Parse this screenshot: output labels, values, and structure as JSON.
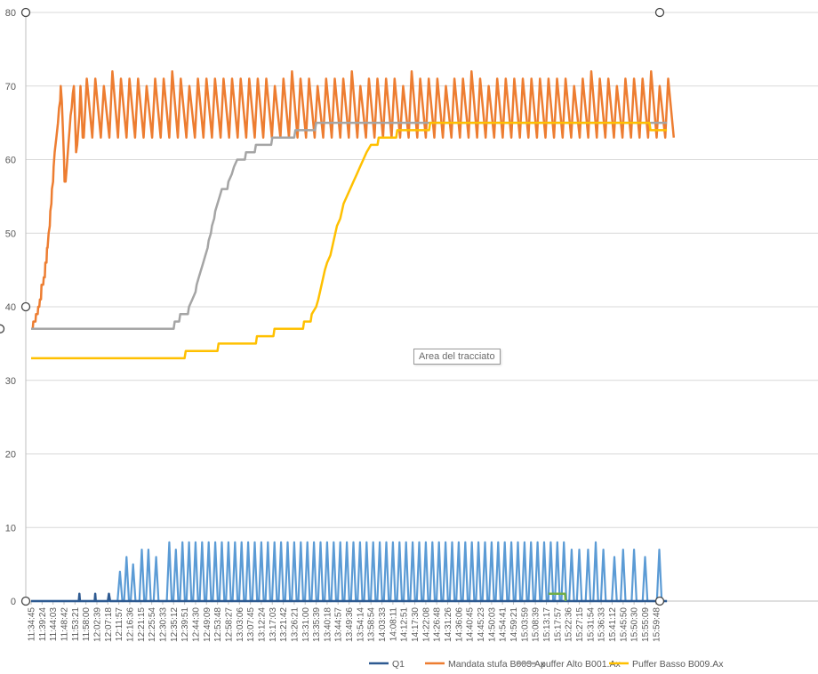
{
  "chart_data": {
    "type": "line",
    "ylim": [
      0,
      80
    ],
    "yticks": [
      0,
      10,
      20,
      30,
      40,
      50,
      60,
      70,
      80
    ],
    "grid": true,
    "legend_position": "bottom-right",
    "x_tick_labels": [
      "11:34:45",
      "11:39:24",
      "11:44:03",
      "11:48:42",
      "11:53:21",
      "11:58:00",
      "12:02:39",
      "12:07:18",
      "12:11:57",
      "12:16:36",
      "12:21:15",
      "12:25:54",
      "12:30:33",
      "12:35:12",
      "12:39:51",
      "12:44:30",
      "12:49:09",
      "12:53:48",
      "12:58:27",
      "13:03:06",
      "13:07:45",
      "13:12:24",
      "13:17:03",
      "13:21:42",
      "13:26:21",
      "13:31:00",
      "13:35:39",
      "13:40:18",
      "13:44:57",
      "13:49:36",
      "13:54:14",
      "13:58:54",
      "14:03:33",
      "14:08:11",
      "14:12:51",
      "14:17:30",
      "14:22:08",
      "14:26:48",
      "14:31:26",
      "14:36:06",
      "14:40:45",
      "14:45:23",
      "14:50:03",
      "14:54:41",
      "14:59:21",
      "15:03:59",
      "15:08:39",
      "15:13:17",
      "15:17:57",
      "15:22:36",
      "15:27:15",
      "15:31:54",
      "15:36:33",
      "15:41:12",
      "15:45:50",
      "15:50:30",
      "15:55:09",
      "15:59:48"
    ],
    "series": [
      {
        "name": "Q1",
        "color": "#2e5a91",
        "points": [
          [
            0,
            0
          ],
          [
            4.35,
            0
          ],
          [
            4.4,
            1
          ],
          [
            4.45,
            0
          ],
          [
            5.8,
            0
          ],
          [
            5.85,
            1
          ],
          [
            5.9,
            0
          ],
          [
            7.0,
            0
          ],
          [
            7.1,
            1
          ],
          [
            7.2,
            0
          ],
          [
            58,
            0
          ]
        ]
      },
      {
        "name": "Mandata stufa B003.Ax",
        "color": "#ed7d31",
        "ramp": [
          [
            0,
            37
          ],
          [
            0.15,
            37
          ],
          [
            0.2,
            38
          ],
          [
            0.4,
            38
          ],
          [
            0.45,
            39
          ],
          [
            0.6,
            39
          ],
          [
            0.65,
            40
          ],
          [
            0.75,
            40
          ],
          [
            0.8,
            41
          ],
          [
            0.9,
            41
          ],
          [
            0.95,
            43
          ],
          [
            1.1,
            43
          ],
          [
            1.15,
            44
          ],
          [
            1.25,
            44
          ],
          [
            1.3,
            46
          ],
          [
            1.4,
            46
          ],
          [
            1.45,
            48
          ],
          [
            1.5,
            48
          ],
          [
            1.55,
            49
          ],
          [
            1.6,
            50
          ],
          [
            1.7,
            51
          ],
          [
            1.75,
            53
          ],
          [
            1.85,
            54
          ],
          [
            1.9,
            56
          ],
          [
            2.0,
            57
          ],
          [
            2.05,
            59
          ],
          [
            2.15,
            61
          ],
          [
            2.3,
            63
          ],
          [
            2.45,
            65
          ],
          [
            2.55,
            67
          ],
          [
            2.65,
            68
          ],
          [
            2.7,
            70
          ],
          [
            2.8,
            68
          ],
          [
            2.9,
            64
          ],
          [
            3.0,
            60
          ],
          [
            3.05,
            57
          ],
          [
            3.15,
            57
          ],
          [
            3.25,
            59
          ],
          [
            3.4,
            62
          ],
          [
            3.5,
            64
          ],
          [
            3.6,
            66
          ],
          [
            3.7,
            67
          ],
          [
            3.8,
            69
          ],
          [
            3.9,
            70
          ],
          [
            4.0,
            66
          ],
          [
            4.1,
            61
          ],
          [
            4.2,
            62
          ],
          [
            4.3,
            64
          ],
          [
            4.4,
            66
          ],
          [
            4.5,
            70
          ],
          [
            4.6,
            67
          ],
          [
            4.7,
            63
          ],
          [
            4.8,
            63
          ]
        ],
        "osc_start": 4.8,
        "osc_end": 58,
        "osc_period": 0.78,
        "osc_low": 63,
        "osc_high": 71
      },
      {
        "name": "puffer Alto B001.Ax",
        "color": "#a5a5a5",
        "points": [
          [
            0,
            37
          ],
          [
            13.0,
            37
          ],
          [
            13.1,
            38
          ],
          [
            13.5,
            38
          ],
          [
            13.6,
            39
          ],
          [
            14.3,
            39
          ],
          [
            14.4,
            40
          ],
          [
            14.7,
            41
          ],
          [
            15.0,
            42
          ],
          [
            15.1,
            43
          ],
          [
            15.3,
            44
          ],
          [
            15.5,
            45
          ],
          [
            15.7,
            46
          ],
          [
            15.9,
            47
          ],
          [
            16.1,
            48
          ],
          [
            16.2,
            49
          ],
          [
            16.4,
            50
          ],
          [
            16.5,
            51
          ],
          [
            16.7,
            52
          ],
          [
            16.8,
            53
          ],
          [
            17.0,
            54
          ],
          [
            17.2,
            55
          ],
          [
            17.4,
            56
          ],
          [
            17.9,
            56
          ],
          [
            18.0,
            57
          ],
          [
            18.3,
            58
          ],
          [
            18.5,
            59
          ],
          [
            18.8,
            60
          ],
          [
            19.5,
            60
          ],
          [
            19.6,
            61
          ],
          [
            20.4,
            61
          ],
          [
            20.5,
            62
          ],
          [
            21.9,
            62
          ],
          [
            22.0,
            63
          ],
          [
            24.0,
            63
          ],
          [
            24.1,
            64
          ],
          [
            25.9,
            64
          ],
          [
            26.0,
            65
          ],
          [
            58,
            65
          ]
        ]
      },
      {
        "name": "Puffer Basso B009.Ax",
        "color": "#ffc000",
        "points": [
          [
            0,
            33
          ],
          [
            14.0,
            33
          ],
          [
            14.1,
            34
          ],
          [
            17.0,
            34
          ],
          [
            17.1,
            35
          ],
          [
            20.5,
            35
          ],
          [
            20.6,
            36
          ],
          [
            22.1,
            36
          ],
          [
            22.2,
            37
          ],
          [
            24.8,
            37
          ],
          [
            24.9,
            38
          ],
          [
            25.5,
            38
          ],
          [
            25.6,
            39
          ],
          [
            26.0,
            40
          ],
          [
            26.2,
            41
          ],
          [
            26.5,
            43
          ],
          [
            26.8,
            45
          ],
          [
            27.0,
            46
          ],
          [
            27.3,
            47
          ],
          [
            27.6,
            49
          ],
          [
            27.9,
            51
          ],
          [
            28.2,
            52
          ],
          [
            28.5,
            54
          ],
          [
            28.8,
            55
          ],
          [
            29.1,
            56
          ],
          [
            29.4,
            57
          ],
          [
            29.7,
            58
          ],
          [
            30.0,
            59
          ],
          [
            30.3,
            60
          ],
          [
            30.6,
            61
          ],
          [
            31.0,
            62
          ],
          [
            31.6,
            62
          ],
          [
            31.7,
            63
          ],
          [
            33.3,
            63
          ],
          [
            33.4,
            64
          ],
          [
            36.3,
            64
          ],
          [
            36.4,
            65
          ],
          [
            56.4,
            65
          ],
          [
            56.5,
            64
          ],
          [
            58,
            64
          ]
        ]
      },
      {
        "name": "",
        "color": "#70ad47",
        "points": [
          [
            47.2,
            1
          ],
          [
            48.7,
            1
          ],
          [
            48.75,
            0
          ]
        ]
      }
    ],
    "pulse_series": {
      "name": "",
      "color": "#5b9bd5",
      "pulses": [
        [
          8.1,
          4
        ],
        [
          8.7,
          6
        ],
        [
          9.3,
          5
        ],
        [
          10.1,
          7
        ],
        [
          10.7,
          7
        ],
        [
          11.4,
          6
        ],
        [
          12.6,
          8
        ],
        [
          13.2,
          7
        ],
        [
          13.8,
          8
        ],
        [
          14.4,
          8
        ],
        [
          15.0,
          8
        ],
        [
          15.6,
          8
        ],
        [
          16.2,
          8
        ],
        [
          16.8,
          8
        ],
        [
          17.4,
          8
        ],
        [
          18.0,
          8
        ],
        [
          18.6,
          8
        ],
        [
          19.2,
          8
        ],
        [
          19.8,
          8
        ],
        [
          20.4,
          8
        ],
        [
          21.0,
          8
        ],
        [
          21.6,
          8
        ],
        [
          22.2,
          8
        ],
        [
          22.8,
          8
        ],
        [
          23.4,
          8
        ],
        [
          24.0,
          8
        ],
        [
          24.6,
          8
        ],
        [
          25.2,
          8
        ],
        [
          25.8,
          8
        ],
        [
          26.4,
          8
        ],
        [
          27.0,
          8
        ],
        [
          27.6,
          8
        ],
        [
          28.2,
          8
        ],
        [
          28.8,
          8
        ],
        [
          29.4,
          8
        ],
        [
          30.0,
          8
        ],
        [
          30.6,
          8
        ],
        [
          31.2,
          8
        ],
        [
          31.8,
          8
        ],
        [
          32.4,
          8
        ],
        [
          33.0,
          8
        ],
        [
          33.6,
          8
        ],
        [
          34.2,
          8
        ],
        [
          34.8,
          8
        ],
        [
          35.4,
          8
        ],
        [
          36.0,
          8
        ],
        [
          36.6,
          8
        ],
        [
          37.2,
          8
        ],
        [
          37.8,
          8
        ],
        [
          38.4,
          8
        ],
        [
          39.0,
          8
        ],
        [
          39.6,
          8
        ],
        [
          40.2,
          8
        ],
        [
          40.8,
          8
        ],
        [
          41.4,
          8
        ],
        [
          42.0,
          8
        ],
        [
          42.6,
          8
        ],
        [
          43.2,
          8
        ],
        [
          43.8,
          8
        ],
        [
          44.4,
          8
        ],
        [
          45.0,
          8
        ],
        [
          45.6,
          8
        ],
        [
          46.2,
          8
        ],
        [
          46.8,
          8
        ],
        [
          47.4,
          8
        ],
        [
          48.0,
          8
        ],
        [
          48.6,
          8
        ],
        [
          49.3,
          7
        ],
        [
          50.0,
          7
        ],
        [
          50.8,
          7
        ],
        [
          51.5,
          8
        ],
        [
          52.2,
          7
        ],
        [
          53.2,
          6
        ],
        [
          54.0,
          7
        ],
        [
          55.0,
          7
        ],
        [
          56.0,
          6
        ],
        [
          57.3,
          7
        ]
      ],
      "half_width": 0.22
    }
  },
  "legend": [
    {
      "label": "Q1",
      "color": "#2e5a91"
    },
    {
      "label": "Mandata stufa B003.Ax",
      "color": "#ed7d31"
    },
    {
      "label": "puffer Alto B001.Ax",
      "color": "#a5a5a5"
    },
    {
      "label": "Puffer Basso B009.Ax",
      "color": "#ffc000"
    }
  ],
  "tooltip": "Area del tracciato"
}
